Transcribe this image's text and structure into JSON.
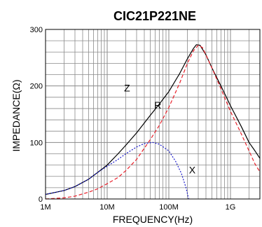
{
  "chart_data": {
    "type": "line",
    "title": "CIC21P221NE",
    "xlabel": "FREQUENCY(Hz)",
    "ylabel": "IMPEDANCE(Ω)",
    "x_scale": "log",
    "xlim": [
      1000000,
      3000000000
    ],
    "ylim": [
      0,
      300
    ],
    "grid": true,
    "x_ticks": [
      {
        "value": 1000000,
        "label": "1M"
      },
      {
        "value": 10000000,
        "label": "10M"
      },
      {
        "value": 100000000,
        "label": "100M"
      },
      {
        "value": 1000000000,
        "label": "1G"
      }
    ],
    "y_ticks": [
      {
        "value": 0,
        "label": "0"
      },
      {
        "value": 100,
        "label": "100"
      },
      {
        "value": 200,
        "label": "200"
      },
      {
        "value": 300,
        "label": "300"
      }
    ],
    "series": [
      {
        "name": "Z",
        "color": "#000000",
        "dash": "solid",
        "label_at": {
          "x": 21000000,
          "y": 190
        },
        "points": [
          [
            1000000,
            8
          ],
          [
            2000000,
            15
          ],
          [
            3000000,
            22
          ],
          [
            5000000,
            35
          ],
          [
            7000000,
            47
          ],
          [
            10000000,
            60
          ],
          [
            15000000,
            80
          ],
          [
            20000000,
            95
          ],
          [
            30000000,
            117
          ],
          [
            50000000,
            148
          ],
          [
            70000000,
            168
          ],
          [
            100000000,
            190
          ],
          [
            150000000,
            222
          ],
          [
            200000000,
            248
          ],
          [
            250000000,
            266
          ],
          [
            280000000,
            273
          ],
          [
            320000000,
            272
          ],
          [
            400000000,
            255
          ],
          [
            500000000,
            232
          ],
          [
            700000000,
            200
          ],
          [
            1000000000,
            165
          ],
          [
            1500000000,
            128
          ],
          [
            2000000000,
            100
          ],
          [
            2500000000,
            85
          ],
          [
            3000000000,
            72
          ]
        ]
      },
      {
        "name": "R",
        "color": "#e8202a",
        "dash": "dashed",
        "label_at": {
          "x": 66000000,
          "y": 160
        },
        "points": [
          [
            1000000,
            0
          ],
          [
            2000000,
            2
          ],
          [
            3000000,
            5
          ],
          [
            5000000,
            12
          ],
          [
            7000000,
            18
          ],
          [
            10000000,
            27
          ],
          [
            15000000,
            38
          ],
          [
            20000000,
            50
          ],
          [
            30000000,
            70
          ],
          [
            50000000,
            105
          ],
          [
            70000000,
            130
          ],
          [
            100000000,
            162
          ],
          [
            150000000,
            205
          ],
          [
            200000000,
            240
          ],
          [
            250000000,
            262
          ],
          [
            300000000,
            272
          ],
          [
            350000000,
            268
          ],
          [
            400000000,
            255
          ],
          [
            500000000,
            232
          ],
          [
            700000000,
            195
          ],
          [
            1000000000,
            155
          ],
          [
            1500000000,
            115
          ],
          [
            2000000000,
            85
          ],
          [
            2500000000,
            62
          ],
          [
            3000000000,
            48
          ]
        ]
      },
      {
        "name": "X",
        "color": "#1a1acc",
        "dash": "dotted",
        "label_at": {
          "x": 240000000,
          "y": 45
        },
        "points": [
          [
            1000000,
            8
          ],
          [
            2000000,
            15
          ],
          [
            3000000,
            22
          ],
          [
            5000000,
            35
          ],
          [
            7000000,
            47
          ],
          [
            10000000,
            58
          ],
          [
            15000000,
            70
          ],
          [
            20000000,
            80
          ],
          [
            30000000,
            92
          ],
          [
            40000000,
            98
          ],
          [
            55000000,
            100
          ],
          [
            70000000,
            97
          ],
          [
            100000000,
            85
          ],
          [
            130000000,
            66
          ],
          [
            160000000,
            45
          ],
          [
            190000000,
            20
          ],
          [
            210000000,
            0
          ]
        ]
      }
    ]
  }
}
